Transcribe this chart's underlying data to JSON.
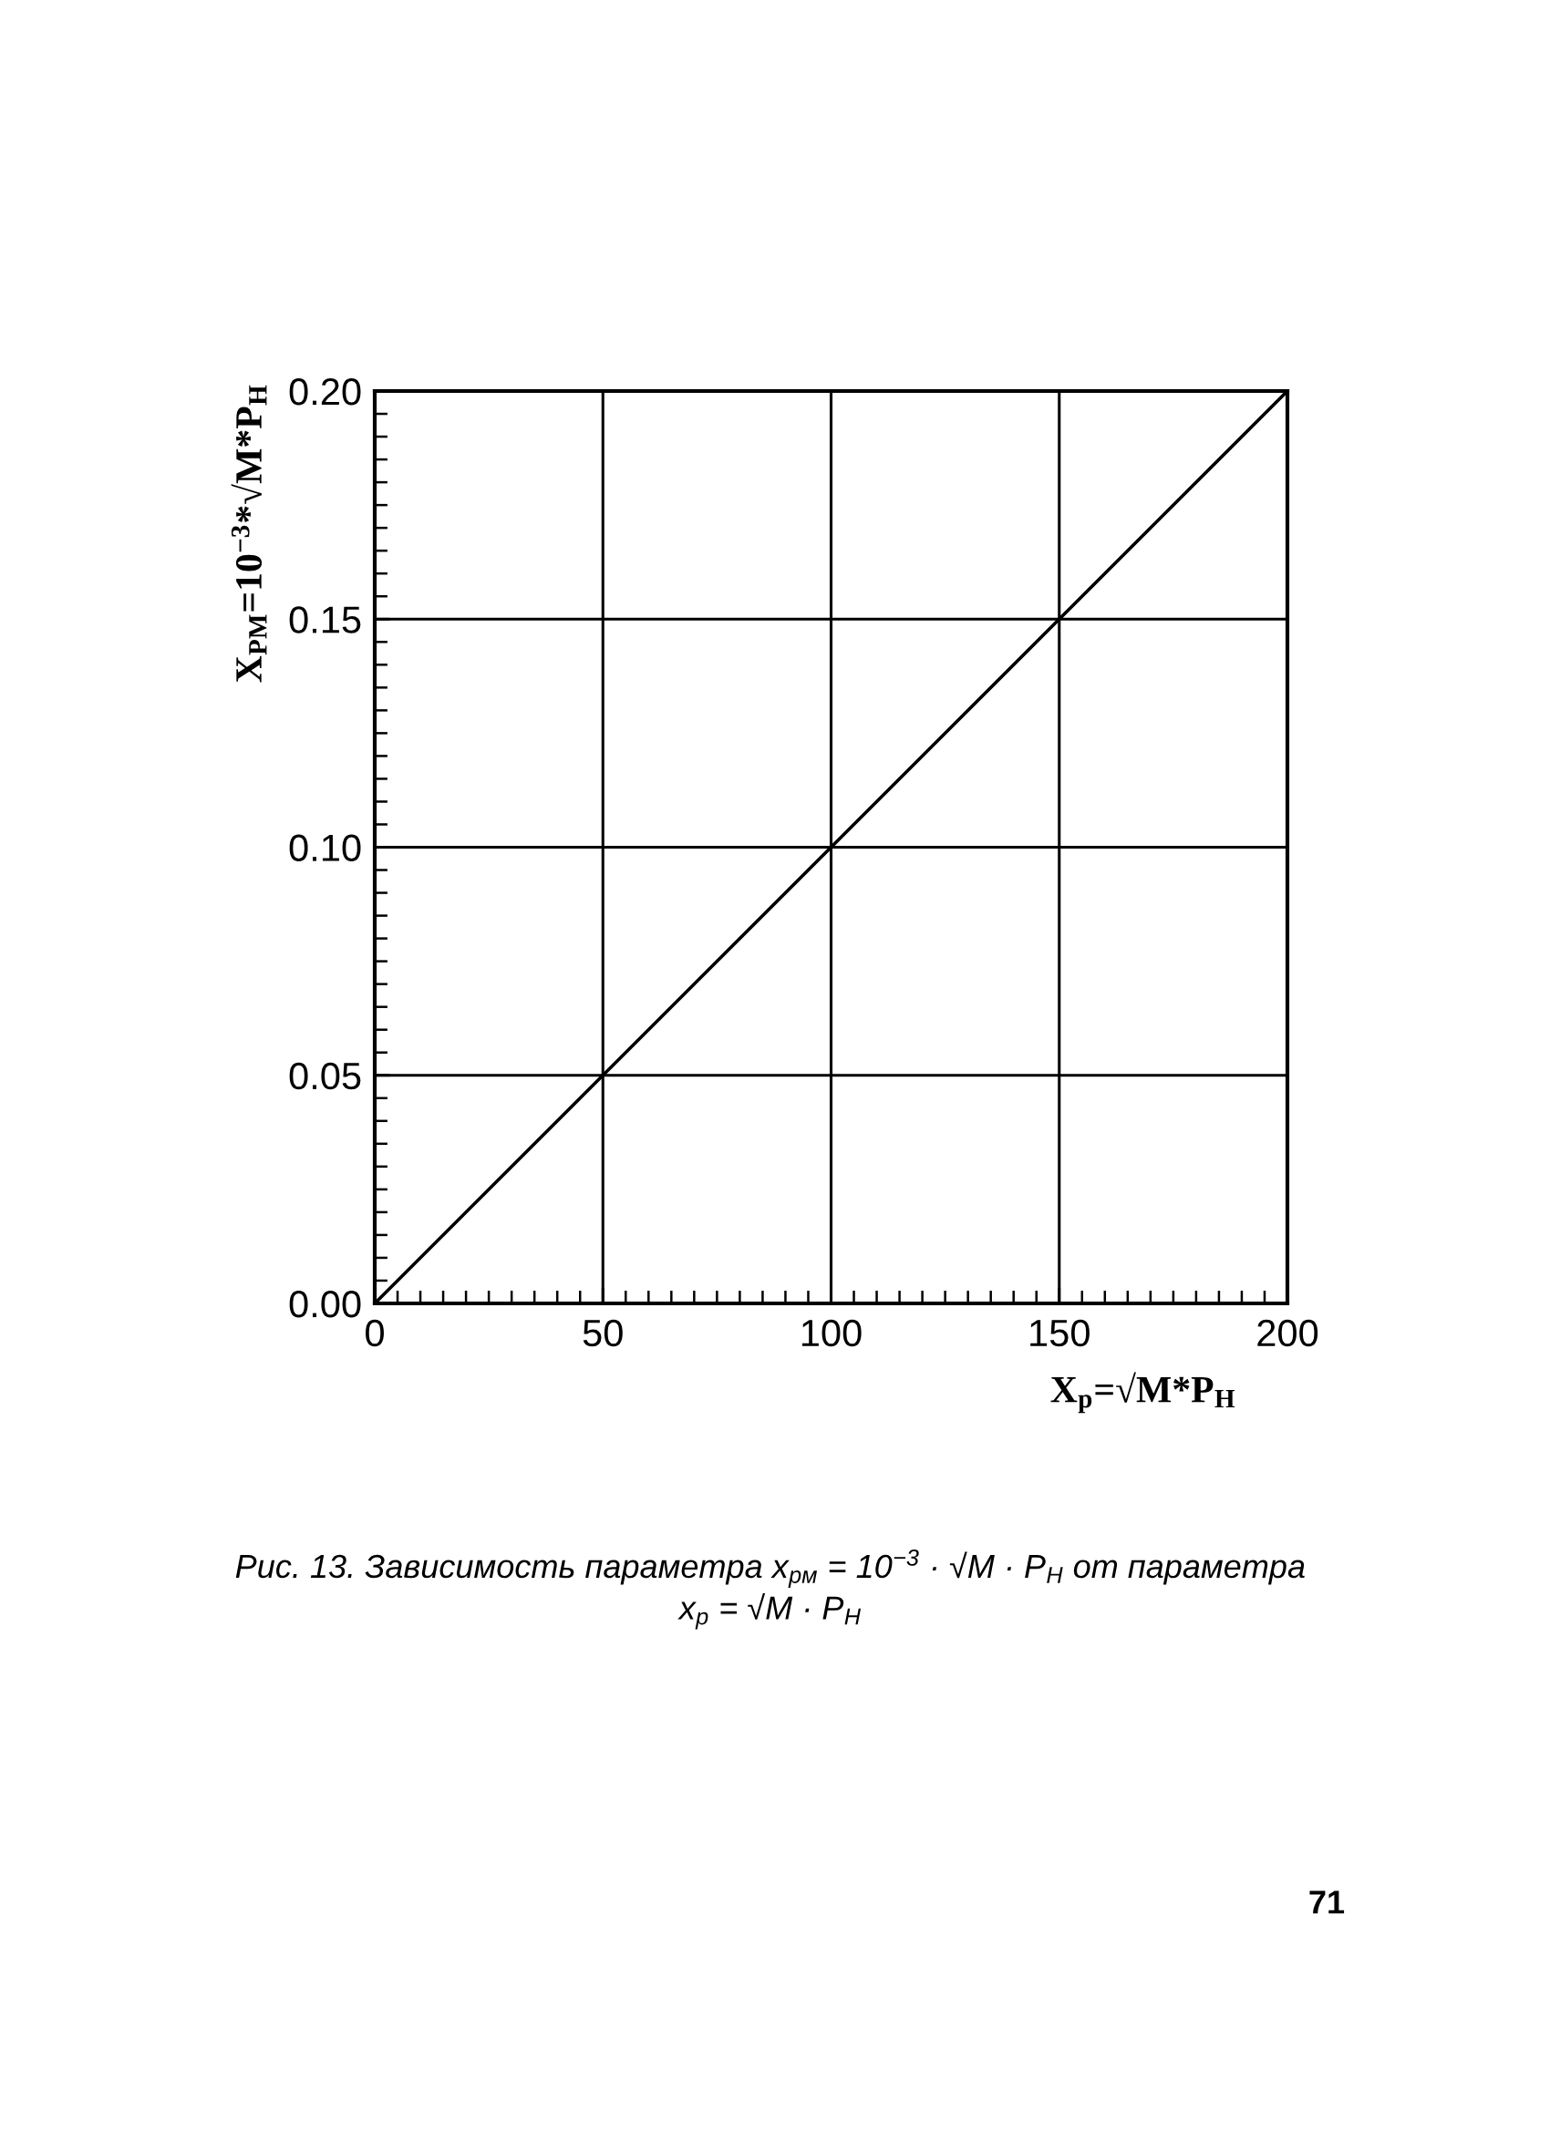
{
  "chart_data": {
    "type": "line",
    "xlabel": "X$_{р}$=√M*P$_{Н}$",
    "ylabel": "X$_{РМ}$=10$^{−3}$*√M*P$_{Н}$",
    "x": [
      0,
      200
    ],
    "values": [
      0,
      0.2
    ],
    "color": "#000000",
    "line_style": "solid",
    "xlim": [
      0,
      200
    ],
    "ylim": [
      0,
      0.2
    ],
    "xticks": [
      0,
      50,
      100,
      150,
      200
    ],
    "yticks": [
      {
        "value": 0,
        "label": "0.00"
      },
      {
        "value": 0.05,
        "label": "0.05"
      },
      {
        "value": 0.1,
        "label": "0.10"
      },
      {
        "value": 0.15,
        "label": "0.15"
      },
      {
        "value": 0.2,
        "label": "0.20"
      }
    ],
    "grid": true,
    "annotations": [
      "Рис. 13. Зависимость параметра x$_{рм}$ = 10$^{−3}$ · √M · P$_{Н}$ от параметра\nx$_{р}$ = √M · P$_{Н}$",
      "71"
    ]
  }
}
